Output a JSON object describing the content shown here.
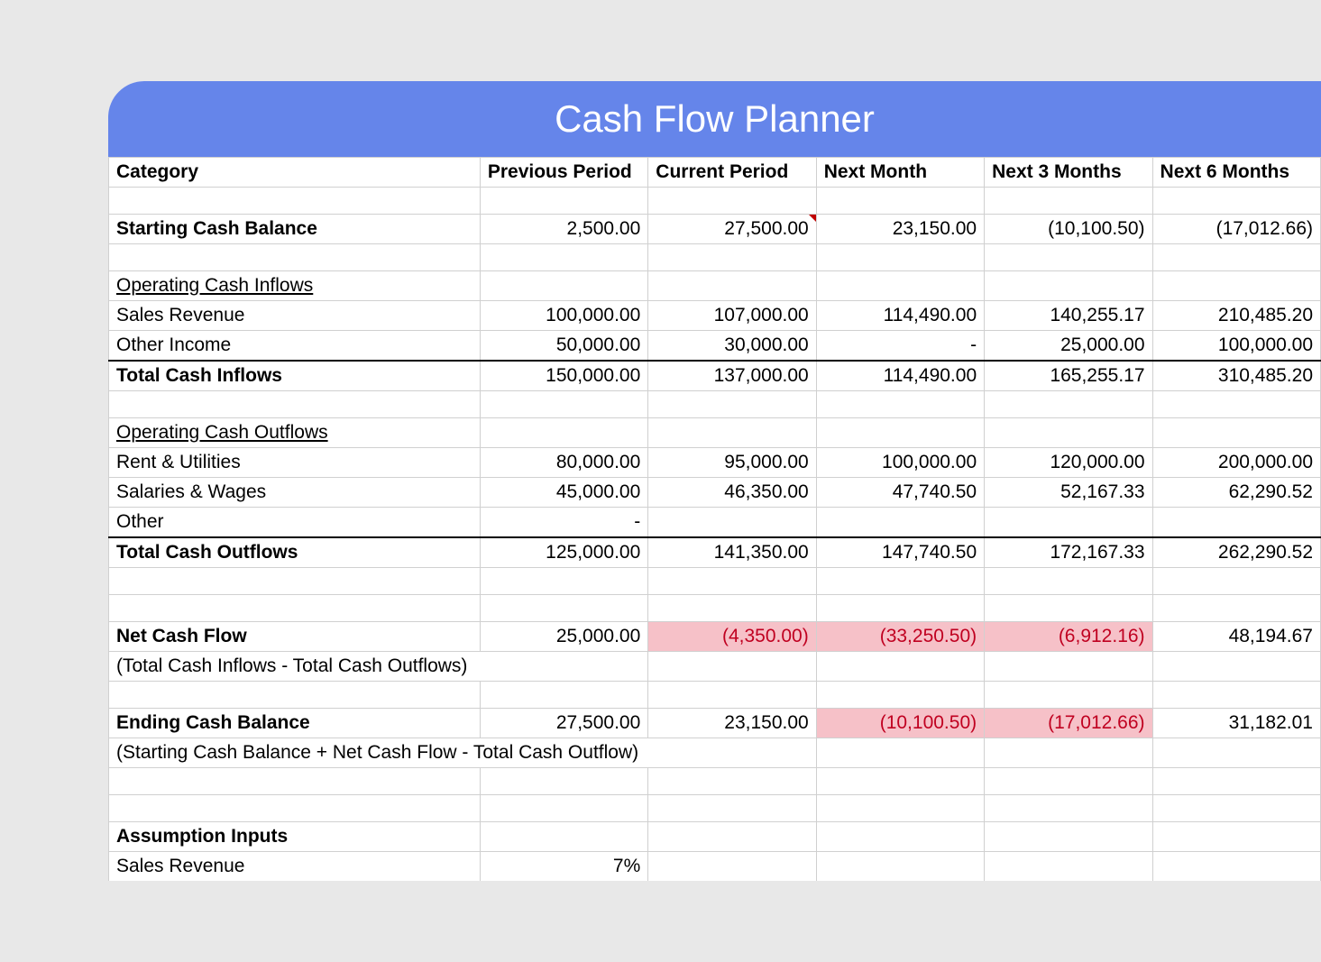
{
  "title": "Cash Flow Planner",
  "colors": {
    "header_bg": "#6585ea",
    "header_text": "#ffffff",
    "grid_line": "#d0d0d0",
    "negative_bg": "#f6c1c8",
    "negative_text": "#c00020",
    "page_bg": "#e8e8e8",
    "cell_bg": "#ffffff"
  },
  "columns": [
    "Category",
    "Previous Period",
    "Current Period",
    "Next Month",
    "Next 3 Months",
    "Next 6 Months"
  ],
  "rows": {
    "starting_cash": {
      "label": "Starting Cash Balance",
      "values": [
        "2,500.00",
        "27,500.00",
        "23,150.00",
        "(10,100.50)",
        "(17,012.66)"
      ],
      "has_comment": [
        false,
        true,
        false,
        false,
        false
      ]
    },
    "inflows_header": "Operating Cash Inflows",
    "sales_revenue": {
      "label": "Sales Revenue",
      "values": [
        "100,000.00",
        "107,000.00",
        "114,490.00",
        "140,255.17",
        "210,485.20"
      ]
    },
    "other_income": {
      "label": "Other Income",
      "values": [
        "50,000.00",
        "30,000.00",
        "-",
        "25,000.00",
        "100,000.00"
      ]
    },
    "total_inflows": {
      "label": "Total Cash Inflows",
      "values": [
        "150,000.00",
        "137,000.00",
        "114,490.00",
        "165,255.17",
        "310,485.20"
      ]
    },
    "outflows_header": "Operating Cash Outflows",
    "rent": {
      "label": "Rent & Utilities",
      "values": [
        "80,000.00",
        "95,000.00",
        "100,000.00",
        "120,000.00",
        "200,000.00"
      ]
    },
    "salaries": {
      "label": "Salaries & Wages",
      "values": [
        "45,000.00",
        "46,350.00",
        "47,740.50",
        "52,167.33",
        "62,290.52"
      ]
    },
    "other_outflow": {
      "label": "Other",
      "values": [
        "-",
        "",
        "",
        "",
        ""
      ]
    },
    "total_outflows": {
      "label": "Total Cash Outflows",
      "values": [
        "125,000.00",
        "141,350.00",
        "147,740.50",
        "172,167.33",
        "262,290.52"
      ]
    },
    "net_cash": {
      "label": "Net Cash Flow",
      "values": [
        "25,000.00",
        "(4,350.00)",
        "(33,250.50)",
        "(6,912.16)",
        "48,194.67"
      ],
      "negative": [
        false,
        true,
        true,
        true,
        false
      ],
      "note": "(Total Cash Inflows - Total Cash Outflows)"
    },
    "ending_cash": {
      "label": "Ending Cash Balance",
      "values": [
        "27,500.00",
        "23,150.00",
        "(10,100.50)",
        "(17,012.66)",
        "31,182.01"
      ],
      "negative": [
        false,
        false,
        true,
        true,
        false
      ],
      "note": "(Starting Cash Balance + Net Cash Flow - Total Cash Outflow)"
    },
    "assumption_header": "Assumption Inputs",
    "assumption_sales": {
      "label": "Sales Revenue",
      "values": [
        "7%",
        "",
        "",
        "",
        ""
      ]
    }
  }
}
